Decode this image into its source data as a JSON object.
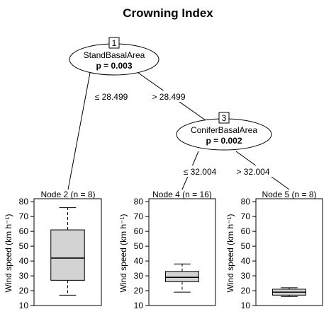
{
  "title": "Crowning Index",
  "inner_nodes": [
    {
      "id": "1",
      "variable": "StandBasalArea",
      "p_text": "p = 0.003"
    },
    {
      "id": "3",
      "variable": "ConiferBasalArea",
      "p_text": "p = 0.002"
    }
  ],
  "edges": [
    {
      "label": "≤ 28.499"
    },
    {
      "label": "> 28.499"
    },
    {
      "label": "≤ 32.004"
    },
    {
      "label": "> 32.004"
    }
  ],
  "terminal_nodes": [
    {
      "label": "Node 2 (n = 8)"
    },
    {
      "label": "Node 4 (n = 16)"
    },
    {
      "label": "Node 5 (n = 8)"
    }
  ],
  "y_axis": {
    "label": "Wind speed (km h⁻¹)",
    "ticks": [
      "80",
      "70",
      "60",
      "50",
      "40",
      "30",
      "20",
      "10"
    ]
  },
  "chart_data": {
    "type": "boxplot",
    "ylabel": "Wind speed (km h⁻¹)",
    "ylim": [
      10,
      82
    ],
    "yticks": [
      10,
      20,
      30,
      40,
      50,
      60,
      70,
      80
    ],
    "series": [
      {
        "name": "Node 2 (n = 8)",
        "min": 17,
        "q1": 27,
        "median": 42,
        "q3": 61,
        "max": 76
      },
      {
        "name": "Node 4 (n = 16)",
        "min": 19,
        "q1": 26,
        "median": 29,
        "q3": 33,
        "max": 38
      },
      {
        "name": "Node 5 (n = 8)",
        "min": 16,
        "q1": 17,
        "median": 19,
        "q3": 21,
        "max": 22
      }
    ]
  },
  "colors": {
    "box_fill": "#d3d3d3",
    "line": "#000000",
    "background": "#ffffff"
  }
}
